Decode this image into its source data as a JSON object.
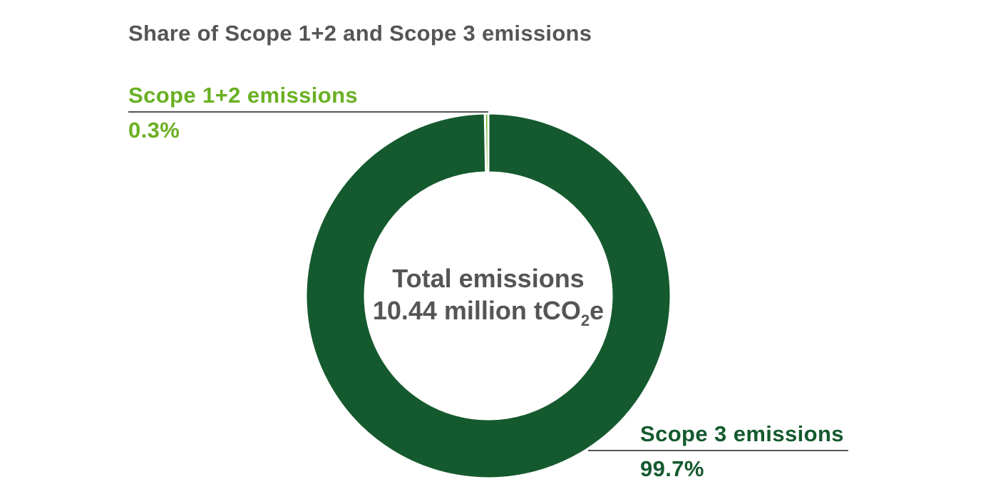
{
  "chart_data": {
    "type": "pie",
    "title": "Share of Scope 1+2 and Scope 3 emissions",
    "center_label": {
      "line1": "Total emissions",
      "line2_main": "10.44 million tCO",
      "line2_subscript": "2",
      "line2_suffix": "e"
    },
    "slices": [
      {
        "name": "Scope 1+2 emissions",
        "value": 0.3,
        "value_label": "0.3%",
        "color": "#6ab023"
      },
      {
        "name": "Scope 3 emissions",
        "value": 99.7,
        "value_label": "99.7%",
        "color": "#145a2e"
      }
    ],
    "separator_color": "#ffffff",
    "leader_line_color": "#555555",
    "donut": true
  }
}
